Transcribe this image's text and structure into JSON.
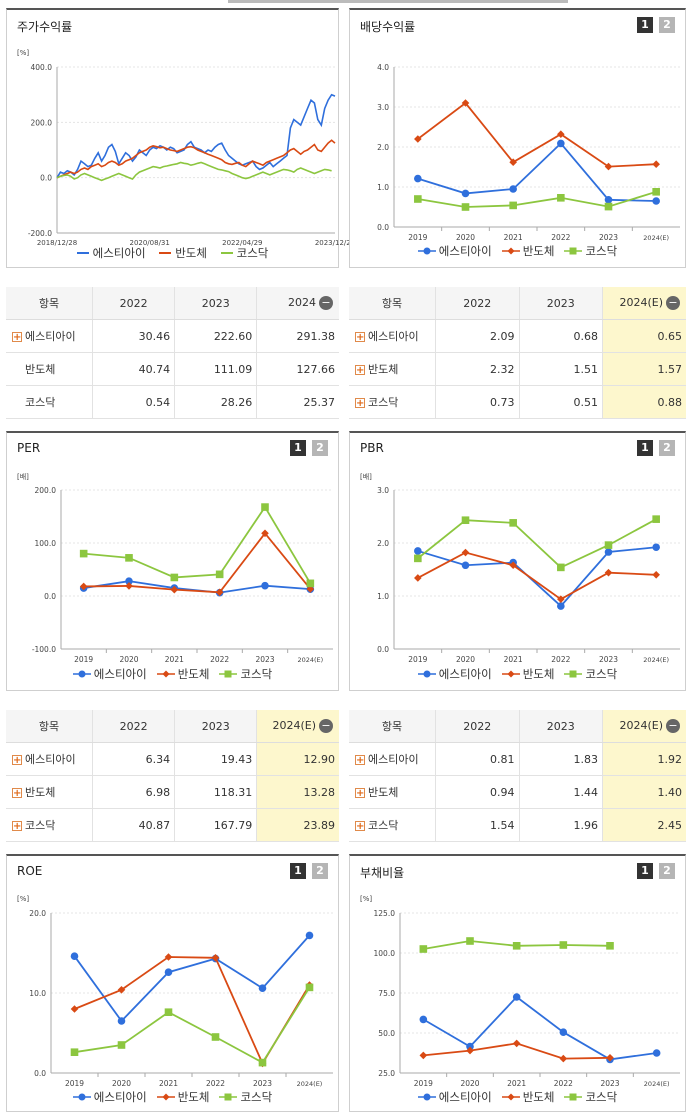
{
  "colors": {
    "esti": "#2f6fdc",
    "semi": "#d94a14",
    "kosdaq": "#8cc63f"
  },
  "panels": {
    "stock": {
      "title": "주가수익률",
      "unit": "[%]"
    },
    "dividend": {
      "title": "배당수익률",
      "unit": "",
      "pages": [
        "1",
        "2"
      ]
    },
    "per": {
      "title": "PER",
      "unit": "[배]",
      "pages": [
        "1",
        "2"
      ]
    },
    "pbr": {
      "title": "PBR",
      "unit": "[배]",
      "pages": [
        "1",
        "2"
      ]
    },
    "roe": {
      "title": "ROE",
      "unit": "[%]",
      "pages": [
        "1",
        "2"
      ]
    },
    "debt": {
      "title": "부채비율",
      "unit": "[%]",
      "pages": [
        "1",
        "2"
      ]
    }
  },
  "legend": [
    "에스티아이",
    "반도체",
    "코스닥"
  ],
  "tables": {
    "stock": {
      "headers": [
        "항목",
        "2022",
        "2023",
        "2024"
      ],
      "rows": [
        {
          "name": "에스티아이",
          "plus": true,
          "v": [
            "30.46",
            "222.60",
            "291.38"
          ]
        },
        {
          "name": "반도체",
          "plus": false,
          "v": [
            "40.74",
            "111.09",
            "127.66"
          ]
        },
        {
          "name": "코스닥",
          "plus": false,
          "v": [
            "0.54",
            "28.26",
            "25.37"
          ]
        }
      ]
    },
    "dividend": {
      "headers": [
        "항목",
        "2022",
        "2023",
        "2024(E)"
      ],
      "rows": [
        {
          "name": "에스티아이",
          "plus": true,
          "v": [
            "2.09",
            "0.68",
            "0.65"
          ]
        },
        {
          "name": "반도체",
          "plus": true,
          "v": [
            "2.32",
            "1.51",
            "1.57"
          ]
        },
        {
          "name": "코스닥",
          "plus": true,
          "v": [
            "0.73",
            "0.51",
            "0.88"
          ]
        }
      ]
    },
    "per": {
      "headers": [
        "항목",
        "2022",
        "2023",
        "2024(E)"
      ],
      "rows": [
        {
          "name": "에스티아이",
          "plus": true,
          "v": [
            "6.34",
            "19.43",
            "12.90"
          ]
        },
        {
          "name": "반도체",
          "plus": true,
          "v": [
            "6.98",
            "118.31",
            "13.28"
          ]
        },
        {
          "name": "코스닥",
          "plus": true,
          "v": [
            "40.87",
            "167.79",
            "23.89"
          ]
        }
      ]
    },
    "pbr": {
      "headers": [
        "항목",
        "2022",
        "2023",
        "2024(E)"
      ],
      "rows": [
        {
          "name": "에스티아이",
          "plus": true,
          "v": [
            "0.81",
            "1.83",
            "1.92"
          ]
        },
        {
          "name": "반도체",
          "plus": true,
          "v": [
            "0.94",
            "1.44",
            "1.40"
          ]
        },
        {
          "name": "코스닥",
          "plus": true,
          "v": [
            "1.54",
            "1.96",
            "2.45"
          ]
        }
      ]
    }
  },
  "chart_data": [
    {
      "id": "stock",
      "type": "line",
      "title": "주가수익률",
      "ylabel": "[%]",
      "ylim": [
        -200,
        400
      ],
      "yticks": [
        "400.0",
        "200.0",
        "0.0",
        "-200.0"
      ],
      "xlabels": [
        "2018/12/28",
        "2020/08/31",
        "2022/04/29",
        "2023/12/28"
      ],
      "series": [
        {
          "name": "에스티아이",
          "values": [
            0,
            20,
            15,
            25,
            20,
            10,
            30,
            60,
            50,
            40,
            45,
            70,
            90,
            60,
            80,
            110,
            120,
            95,
            50,
            70,
            90,
            80,
            60,
            75,
            100,
            90,
            80,
            100,
            110,
            105,
            115,
            110,
            100,
            110,
            105,
            90,
            95,
            100,
            120,
            130,
            110,
            105,
            100,
            90,
            100,
            95,
            110,
            120,
            125,
            100,
            80,
            70,
            60,
            50,
            45,
            50,
            55,
            60,
            40,
            30,
            35,
            45,
            55,
            40,
            50,
            60,
            70,
            80,
            180,
            210,
            200,
            190,
            220,
            250,
            280,
            270,
            210,
            190,
            250,
            280,
            300,
            295
          ]
        },
        {
          "name": "반도체",
          "values": [
            0,
            5,
            10,
            15,
            20,
            15,
            20,
            30,
            35,
            30,
            40,
            45,
            50,
            40,
            45,
            55,
            60,
            55,
            45,
            50,
            60,
            65,
            70,
            80,
            90,
            95,
            100,
            110,
            115,
            112,
            108,
            110,
            105,
            100,
            98,
            95,
            100,
            105,
            110,
            112,
            108,
            100,
            95,
            90,
            85,
            80,
            75,
            70,
            65,
            55,
            50,
            48,
            52,
            55,
            45,
            40,
            50,
            60,
            55,
            50,
            45,
            55,
            60,
            65,
            70,
            75,
            80,
            90,
            100,
            105,
            95,
            85,
            95,
            100,
            110,
            120,
            100,
            95,
            110,
            125,
            135,
            125
          ]
        },
        {
          "name": "코스닥",
          "values": [
            0,
            5,
            8,
            10,
            5,
            -5,
            0,
            10,
            15,
            10,
            5,
            0,
            -5,
            -10,
            -5,
            0,
            5,
            10,
            15,
            10,
            5,
            0,
            -5,
            10,
            20,
            25,
            30,
            35,
            40,
            38,
            35,
            40,
            42,
            45,
            48,
            50,
            55,
            52,
            50,
            45,
            48,
            52,
            55,
            50,
            45,
            40,
            35,
            30,
            28,
            25,
            22,
            15,
            10,
            5,
            0,
            -3,
            0,
            5,
            10,
            15,
            20,
            15,
            10,
            15,
            20,
            25,
            30,
            28,
            25,
            20,
            30,
            35,
            30,
            25,
            20,
            15,
            20,
            25,
            30,
            28,
            25
          ]
        }
      ]
    },
    {
      "id": "dividend",
      "type": "line",
      "title": "배당수익률",
      "ylim": [
        0,
        4
      ],
      "yticks": [
        "4.0",
        "3.0",
        "2.0",
        "1.0",
        "0.0"
      ],
      "categories": [
        "2019",
        "2020",
        "2021",
        "2022",
        "2023",
        "2024(E)"
      ],
      "series": [
        {
          "name": "에스티아이",
          "values": [
            1.21,
            0.84,
            0.95,
            2.09,
            0.68,
            0.65
          ]
        },
        {
          "name": "반도체",
          "values": [
            2.2,
            3.1,
            1.62,
            2.32,
            1.51,
            1.57
          ]
        },
        {
          "name": "코스닥",
          "values": [
            0.7,
            0.5,
            0.54,
            0.73,
            0.51,
            0.88
          ]
        }
      ]
    },
    {
      "id": "per",
      "type": "line",
      "title": "PER",
      "ylabel": "[배]",
      "ylim": [
        -100,
        200
      ],
      "yticks": [
        "200.0",
        "100.0",
        "0.0",
        "-100.0"
      ],
      "categories": [
        "2019",
        "2020",
        "2021",
        "2022",
        "2023",
        "2024(E)"
      ],
      "series": [
        {
          "name": "에스티아이",
          "values": [
            15,
            28,
            15,
            6.34,
            19.43,
            12.9
          ]
        },
        {
          "name": "반도체",
          "values": [
            18,
            19,
            12,
            6.98,
            118.31,
            13.28
          ]
        },
        {
          "name": "코스닥",
          "values": [
            80,
            72,
            35,
            40.87,
            167.79,
            23.89
          ]
        }
      ]
    },
    {
      "id": "pbr",
      "type": "line",
      "title": "PBR",
      "ylabel": "[배]",
      "ylim": [
        0,
        3
      ],
      "yticks": [
        "3.0",
        "2.0",
        "1.0",
        "0.0"
      ],
      "categories": [
        "2019",
        "2020",
        "2021",
        "2022",
        "2023",
        "2024(E)"
      ],
      "series": [
        {
          "name": "에스티아이",
          "values": [
            1.85,
            1.58,
            1.63,
            0.81,
            1.83,
            1.92
          ]
        },
        {
          "name": "반도체",
          "values": [
            1.34,
            1.82,
            1.58,
            0.94,
            1.44,
            1.4
          ]
        },
        {
          "name": "코스닥",
          "values": [
            1.71,
            2.43,
            2.38,
            1.54,
            1.96,
            2.45
          ]
        }
      ]
    },
    {
      "id": "roe",
      "type": "line",
      "title": "ROE",
      "ylabel": "[%]",
      "ylim": [
        0,
        20
      ],
      "yticks": [
        "20.0",
        "10.0",
        "0.0"
      ],
      "categories": [
        "2019",
        "2020",
        "2021",
        "2022",
        "2023",
        "2024(E)"
      ],
      "series": [
        {
          "name": "에스티아이",
          "values": [
            14.6,
            6.5,
            12.6,
            14.3,
            10.6,
            17.2
          ]
        },
        {
          "name": "반도체",
          "values": [
            8.0,
            10.4,
            14.5,
            14.4,
            1.2,
            11.0
          ]
        },
        {
          "name": "코스닥",
          "values": [
            2.6,
            3.5,
            7.6,
            4.5,
            1.3,
            10.7
          ]
        }
      ]
    },
    {
      "id": "debt",
      "type": "line",
      "title": "부채비율",
      "ylabel": "[%]",
      "ylim": [
        25,
        125
      ],
      "yticks": [
        "125.0",
        "100.0",
        "75.0",
        "50.0",
        "25.0"
      ],
      "categories": [
        "2019",
        "2020",
        "2021",
        "2022",
        "2023",
        "2024(E)"
      ],
      "series": [
        {
          "name": "에스티아이",
          "values": [
            58.5,
            41.5,
            72.5,
            50.5,
            33.5,
            37.5
          ]
        },
        {
          "name": "반도체",
          "values": [
            36.0,
            39.0,
            43.5,
            34.0,
            34.5,
            null
          ]
        },
        {
          "name": "코스닥",
          "values": [
            102.5,
            107.5,
            104.5,
            105.0,
            104.5,
            null
          ]
        }
      ]
    }
  ]
}
